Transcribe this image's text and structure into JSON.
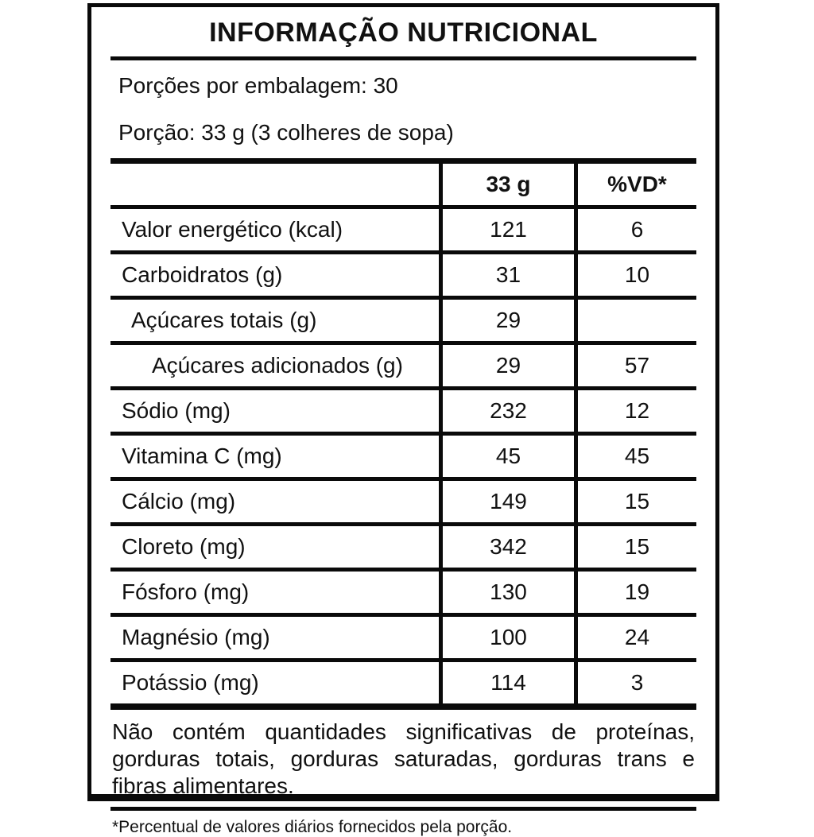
{
  "label": {
    "title": "INFORMAÇÃO NUTRICIONAL",
    "servings_per_package": "Porções por embalagem: 30",
    "serving_size": "Porção: 33 g (3 colheres de sopa)",
    "table": {
      "columns": [
        "",
        "33 g",
        "%VD*"
      ],
      "rows": [
        {
          "nutrient": "Valor energético (kcal)",
          "amount": "121",
          "dv": "6",
          "indent": 0
        },
        {
          "nutrient": "Carboidratos (g)",
          "amount": "31",
          "dv": "10",
          "indent": 0
        },
        {
          "nutrient": "Açúcares totais (g)",
          "amount": "29",
          "dv": "",
          "indent": 1
        },
        {
          "nutrient": "Açúcares adicionados (g)",
          "amount": "29",
          "dv": "57",
          "indent": 2
        },
        {
          "nutrient": "Sódio (mg)",
          "amount": "232",
          "dv": "12",
          "indent": 0
        },
        {
          "nutrient": "Vitamina C (mg)",
          "amount": "45",
          "dv": "45",
          "indent": 0
        },
        {
          "nutrient": "Cálcio (mg)",
          "amount": "149",
          "dv": "15",
          "indent": 0
        },
        {
          "nutrient": "Cloreto (mg)",
          "amount": "342",
          "dv": "15",
          "indent": 0
        },
        {
          "nutrient": "Fósforo (mg)",
          "amount": "130",
          "dv": "19",
          "indent": 0
        },
        {
          "nutrient": "Magnésio (mg)",
          "amount": "100",
          "dv": "24",
          "indent": 0
        },
        {
          "nutrient": "Potássio (mg)",
          "amount": "114",
          "dv": "3",
          "indent": 0
        }
      ]
    },
    "no_significant_note": "Não contém quantidades significativas de proteínas, gorduras totais, gorduras saturadas, gorduras trans e fibras alimentares.",
    "footnote": "*Percentual de valores diários fornecidos pela porção.",
    "colors": {
      "border": "#0a0a0a",
      "background": "#ffffff",
      "text": "#111111"
    }
  }
}
